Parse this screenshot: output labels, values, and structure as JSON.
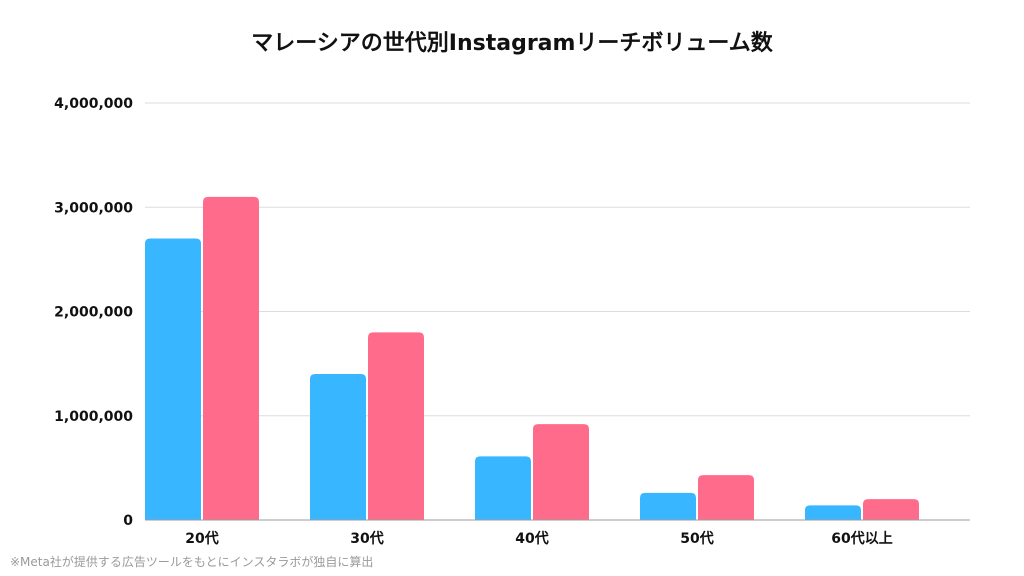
{
  "chart_data": {
    "type": "bar",
    "title": "マレーシアの世代別Instagramリーチボリューム数",
    "xlabel": "",
    "ylabel": "",
    "categories": [
      "20代",
      "30代",
      "40代",
      "50代",
      "60代以上"
    ],
    "series": [
      {
        "values": [
          2700000,
          1400000,
          610000,
          260000,
          140000
        ],
        "color": "#38B6FF"
      },
      {
        "values": [
          3100000,
          1800000,
          920000,
          430000,
          200000
        ],
        "color": "#FF6B8A"
      }
    ],
    "ylim": [
      0,
      4000000
    ],
    "yticks": [
      0,
      1000000,
      2000000,
      3000000,
      4000000
    ],
    "ytick_labels": [
      "0",
      "1,000,000",
      "2,000,000",
      "3,000,000",
      "4,000,000"
    ],
    "grid": true,
    "legend": "none",
    "footnote": "※Meta社が提供する広告ツールをもとにインスタラボが独自に算出"
  }
}
